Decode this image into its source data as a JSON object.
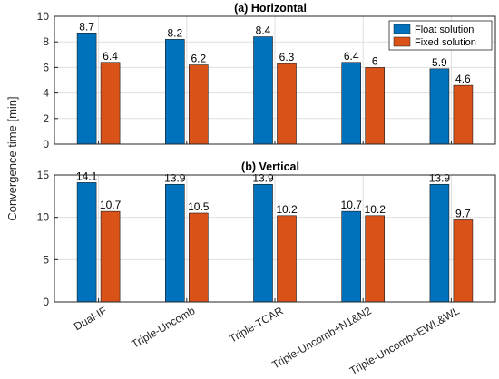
{
  "chart_data": {
    "type": "bar",
    "ylabel": "Convergence time [min]",
    "categories": [
      "Dual-IF",
      "Triple-Uncomb",
      "Triple-TCAR",
      "Triple-Uncomb+N1&N2",
      "Triple-Uncomb+EWL&WL"
    ],
    "legend": {
      "position": "top-right",
      "entries": [
        "Float solution",
        "Fixed solution"
      ]
    },
    "colors": {
      "float": "#0072BD",
      "fixed": "#D95319"
    },
    "grid": true,
    "panels": [
      {
        "title": "(a) Horizontal",
        "ylim": [
          0,
          10
        ],
        "yticks": [
          "0",
          "2",
          "4",
          "6",
          "8",
          "10"
        ],
        "series": [
          {
            "name": "Float solution",
            "values": [
              8.7,
              8.2,
              8.4,
              6.4,
              5.9
            ],
            "labels": [
              "8.7",
              "8.2",
              "8.4",
              "6.4",
              "5.9"
            ]
          },
          {
            "name": "Fixed solution",
            "values": [
              6.4,
              6.2,
              6.3,
              6.0,
              4.6
            ],
            "labels": [
              "6.4",
              "6.2",
              "6.3",
              "6",
              "4.6"
            ]
          }
        ]
      },
      {
        "title": "(b) Vertical",
        "ylim": [
          0,
          15
        ],
        "yticks": [
          "0",
          "5",
          "10",
          "15"
        ],
        "series": [
          {
            "name": "Float solution",
            "values": [
              14.1,
              13.9,
              13.9,
              10.7,
              13.9
            ],
            "labels": [
              "14.1",
              "13.9",
              "13.9",
              "10.7",
              "13.9"
            ]
          },
          {
            "name": "Fixed solution",
            "values": [
              10.7,
              10.5,
              10.2,
              10.2,
              9.7
            ],
            "labels": [
              "10.7",
              "10.5",
              "10.2",
              "10.2",
              "9.7"
            ]
          }
        ]
      }
    ]
  }
}
